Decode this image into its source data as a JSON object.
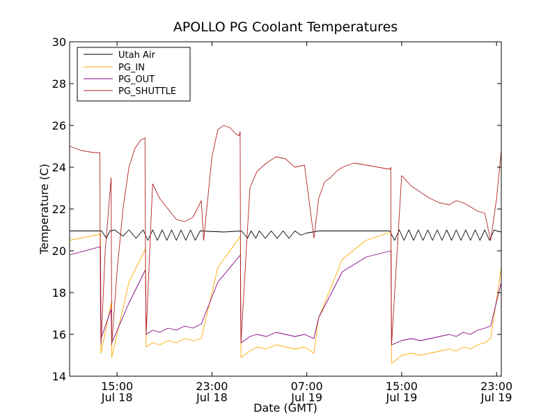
{
  "chart_data": {
    "type": "line",
    "title": "APOLLO PG Coolant Temperatures",
    "xlabel": "Date (GMT)",
    "ylabel": "Temperature (C)",
    "xlim_hours": [
      11.0,
      47.4
    ],
    "ylim": [
      14,
      30
    ],
    "yticks": [
      14,
      16,
      18,
      20,
      22,
      24,
      26,
      28,
      30
    ],
    "xticks": [
      {
        "hours": 15,
        "time": "15:00",
        "date": "Jul 18"
      },
      {
        "hours": 23,
        "time": "23:00",
        "date": "Jul 18"
      },
      {
        "hours": 31,
        "time": "07:00",
        "date": "Jul 19"
      },
      {
        "hours": 39,
        "time": "15:00",
        "date": "Jul 19"
      },
      {
        "hours": 47,
        "time": "23:00",
        "date": "Jul 19"
      }
    ],
    "legend_position": "top-left",
    "series": [
      {
        "name": "Utah Air",
        "color": "#000000",
        "x": [
          11.0,
          13.0,
          13.7,
          14.1,
          14.4,
          14.8,
          15.5,
          16.0,
          16.6,
          17.2,
          17.6,
          18.0,
          18.4,
          18.8,
          19.2,
          19.6,
          20.0,
          20.4,
          20.8,
          21.2,
          21.6,
          22.0,
          24.0,
          25.5,
          26.0,
          26.3,
          26.7,
          27.0,
          27.5,
          28.0,
          28.5,
          29.0,
          29.5,
          30.0,
          30.5,
          31.0,
          31.5,
          32.0,
          33.0,
          35.0,
          37.0,
          38.0,
          38.4,
          38.8,
          39.2,
          39.6,
          40.0,
          40.4,
          40.8,
          41.2,
          41.6,
          42.0,
          42.4,
          42.8,
          43.2,
          43.6,
          44.0,
          44.4,
          44.8,
          45.2,
          45.6,
          46.0,
          46.4,
          46.8,
          47.0,
          47.4
        ],
        "values": [
          20.95,
          20.95,
          20.95,
          20.6,
          20.95,
          21.0,
          20.7,
          21.0,
          20.6,
          21.0,
          20.5,
          21.0,
          20.5,
          21.0,
          20.5,
          21.0,
          20.5,
          21.0,
          20.5,
          21.0,
          20.5,
          20.95,
          20.9,
          20.95,
          20.6,
          20.95,
          20.6,
          20.95,
          20.6,
          20.95,
          20.6,
          20.95,
          20.6,
          20.95,
          20.75,
          20.85,
          20.9,
          20.95,
          20.95,
          20.95,
          20.95,
          20.95,
          20.5,
          21.0,
          20.5,
          21.0,
          20.5,
          21.0,
          20.5,
          21.0,
          20.5,
          21.0,
          20.5,
          21.0,
          20.5,
          21.0,
          20.5,
          21.0,
          20.5,
          21.0,
          20.5,
          21.0,
          20.5,
          21.0,
          20.95,
          20.9
        ]
      },
      {
        "name": "PG_IN",
        "color": "#ffaa00",
        "x": [
          11.0,
          13.6,
          13.65,
          14.5,
          14.55,
          16.0,
          17.4,
          17.45,
          18.0,
          18.6,
          19.3,
          20.0,
          20.7,
          21.4,
          22.1,
          23.5,
          25.4,
          25.45,
          26.2,
          26.8,
          27.6,
          28.4,
          29.2,
          30.0,
          30.8,
          31.6,
          32.0,
          34.0,
          36.0,
          38.1,
          38.15,
          39.0,
          39.8,
          40.6,
          41.4,
          42.2,
          43.0,
          43.6,
          44.2,
          44.8,
          45.4,
          46.0,
          46.5,
          47.4
        ],
        "values": [
          20.5,
          20.8,
          15.1,
          17.5,
          14.9,
          18.5,
          20.1,
          15.4,
          15.6,
          15.5,
          15.7,
          15.6,
          15.8,
          15.7,
          15.8,
          19.2,
          20.7,
          14.9,
          15.2,
          15.4,
          15.3,
          15.5,
          15.4,
          15.3,
          15.4,
          15.1,
          16.8,
          19.6,
          20.5,
          20.9,
          14.6,
          15.0,
          15.1,
          15.0,
          15.1,
          15.2,
          15.3,
          15.2,
          15.4,
          15.3,
          15.5,
          15.6,
          15.8,
          19.2
        ]
      },
      {
        "name": "PG_OUT",
        "color": "#800080",
        "x": [
          11.0,
          13.6,
          13.65,
          14.5,
          14.55,
          16.0,
          17.4,
          17.45,
          18.0,
          18.6,
          19.3,
          20.0,
          20.7,
          21.4,
          22.1,
          23.5,
          25.4,
          25.45,
          26.2,
          26.8,
          27.6,
          28.4,
          29.2,
          30.0,
          30.8,
          31.6,
          32.0,
          34.0,
          36.0,
          38.1,
          38.15,
          39.0,
          39.8,
          40.6,
          41.4,
          42.2,
          43.0,
          43.6,
          44.2,
          44.8,
          45.4,
          46.0,
          46.5,
          47.4
        ],
        "values": [
          19.8,
          20.2,
          15.8,
          17.2,
          15.6,
          17.5,
          19.1,
          16.0,
          16.2,
          16.1,
          16.3,
          16.2,
          16.4,
          16.3,
          16.5,
          18.5,
          19.8,
          15.6,
          15.9,
          16.0,
          15.9,
          16.1,
          16.0,
          15.9,
          16.0,
          15.8,
          16.8,
          19.0,
          19.7,
          20.0,
          15.5,
          15.7,
          15.8,
          15.7,
          15.8,
          15.9,
          16.0,
          15.9,
          16.1,
          16.0,
          16.2,
          16.3,
          16.4,
          18.5
        ]
      },
      {
        "name": "PG_SHUTTLE",
        "color": "#b22222",
        "x": [
          11.0,
          12.0,
          13.0,
          13.55,
          13.6,
          13.65,
          14.0,
          14.5,
          14.55,
          15.0,
          15.5,
          16.0,
          16.5,
          17.0,
          17.35,
          17.4,
          17.45,
          18.0,
          18.6,
          19.3,
          20.0,
          20.7,
          21.4,
          22.1,
          22.3,
          23.0,
          23.5,
          24.0,
          24.5,
          25.0,
          25.3,
          25.38,
          25.42,
          25.45,
          26.2,
          26.8,
          27.6,
          28.4,
          29.2,
          30.0,
          30.8,
          31.6,
          32.0,
          32.5,
          33.0,
          33.5,
          34.0,
          35.0,
          36.0,
          37.0,
          38.0,
          38.08,
          38.12,
          38.15,
          39.0,
          39.8,
          40.6,
          41.4,
          42.2,
          43.0,
          43.6,
          44.2,
          44.8,
          45.4,
          46.0,
          46.5,
          47.0,
          47.4
        ],
        "values": [
          25.0,
          24.8,
          24.7,
          24.7,
          17.2,
          15.5,
          20.0,
          23.5,
          15.5,
          19.0,
          22.0,
          24.0,
          24.9,
          25.3,
          25.4,
          19.0,
          16.0,
          23.2,
          22.5,
          22.0,
          21.5,
          21.4,
          21.6,
          22.4,
          20.5,
          24.5,
          25.8,
          26.0,
          25.9,
          25.6,
          25.5,
          25.7,
          17.0,
          15.6,
          23.0,
          23.8,
          24.2,
          24.5,
          24.4,
          24.0,
          24.1,
          20.6,
          22.5,
          23.3,
          23.5,
          23.8,
          24.0,
          24.2,
          24.1,
          24.0,
          23.9,
          24.0,
          17.0,
          15.5,
          23.6,
          23.1,
          22.8,
          22.5,
          22.3,
          22.2,
          22.4,
          22.3,
          22.1,
          21.9,
          21.8,
          20.5,
          22.5,
          24.8
        ]
      }
    ]
  }
}
